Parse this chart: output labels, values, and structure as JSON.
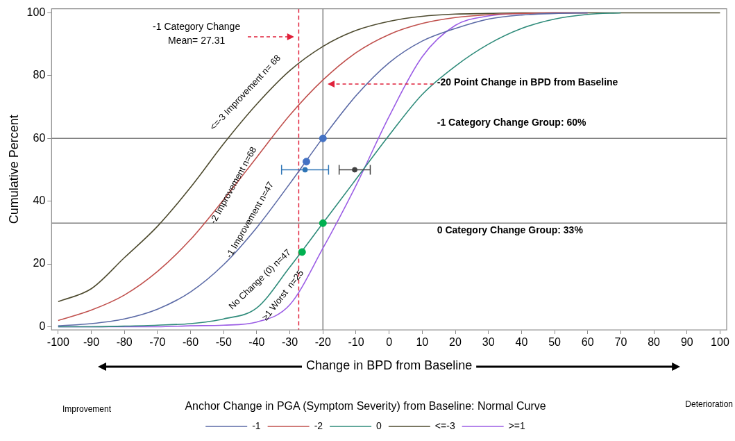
{
  "chart_data": {
    "type": "line",
    "xlabel": "Change in BPD from Baseline",
    "ylabel": "Cumulative Percent",
    "legend_title": "Anchor Change in PGA (Symptom Severity) from Baseline: Normal Curve",
    "legend": "bottom",
    "grid": false,
    "marker": "none",
    "xlim": [
      -102,
      102
    ],
    "ylim": [
      -1,
      101.3
    ],
    "xticks": [
      -100,
      -90,
      -80,
      -70,
      -60,
      -50,
      -40,
      -30,
      -20,
      -10,
      0,
      10,
      20,
      30,
      40,
      50,
      60,
      70,
      80,
      90,
      100
    ],
    "yticks": [
      0,
      20,
      40,
      60,
      80,
      100
    ],
    "x": [
      -100,
      -90,
      -80,
      -70,
      -60,
      -50,
      -40,
      -30,
      -20,
      -10,
      0,
      10,
      20,
      30,
      40,
      50,
      60,
      70,
      80,
      90,
      100
    ],
    "series": [
      {
        "name": "-1",
        "color": "#5b6aa6",
        "values": [
          0.3,
          1.0,
          2.5,
          5.6,
          11.1,
          19.8,
          31.6,
          45.6,
          60.2,
          73.6,
          84.1,
          91,
          95,
          98,
          99.3,
          99.8,
          100,
          null,
          null,
          null,
          null
        ]
      },
      {
        "name": "-2",
        "color": "#c0504d",
        "values": [
          2,
          5.3,
          10.1,
          17.6,
          27.8,
          40.5,
          54,
          67.4,
          78.6,
          87.3,
          93.1,
          96.6,
          98.5,
          99.4,
          99.8,
          100,
          100,
          null,
          null,
          null,
          null
        ]
      },
      {
        "name": "0",
        "color": "#2e8b7a",
        "values": [
          0,
          0,
          0.2,
          0.5,
          1,
          2.5,
          6,
          19,
          33,
          47,
          61,
          74,
          83,
          90,
          95,
          98,
          99.5,
          100,
          null,
          null,
          null
        ]
      },
      {
        "name": "<=-3",
        "color": "#4d4a2e",
        "values": [
          8,
          12.1,
          22,
          32,
          44.4,
          58.3,
          70.9,
          81.6,
          89.3,
          94.4,
          97.3,
          98.9,
          99.6,
          99.8,
          100,
          100,
          100,
          100,
          100,
          100,
          100
        ]
      },
      {
        "name": ">=1",
        "color": "#9b5de5",
        "values": [
          0,
          0,
          0,
          0,
          0.3,
          0.5,
          1.5,
          7,
          25,
          45,
          67,
          86,
          96,
          99,
          99.8,
          100,
          100,
          null,
          null,
          null,
          null
        ]
      },
      {
        "type": "scatter",
        "marker": "circle",
        "x": [
          -20,
          -25,
          -20,
          -26.3
        ],
        "values": [
          60,
          52.6,
          33,
          23.8
        ],
        "colors": [
          "#4472c4",
          "#4472c4",
          "#00b050",
          "#00b050"
        ]
      },
      {
        "type": "scatter",
        "marker": "circle",
        "x": [
          -25.4,
          -10.4
        ],
        "values": [
          50,
          50
        ],
        "xerrors": [
          [
            -32.5,
            -18.3
          ],
          [
            -15.1,
            -5.7
          ]
        ],
        "colors": [
          "#2e75b6",
          "#404040"
        ]
      }
    ],
    "ref_lines": [
      {
        "axis": "x",
        "value": -27.31,
        "color": "#e0203a",
        "line_style": "dashed"
      },
      {
        "axis": "x",
        "value": -20,
        "color": "#7f7f7f",
        "line_style": "solid"
      },
      {
        "axis": "y",
        "value": 60,
        "label": "-1 Category Change Group: 60%",
        "color": "#7f7f7f",
        "line_style": "solid"
      },
      {
        "axis": "y",
        "value": 33,
        "label": "0 Category Change Group: 33%",
        "color": "#7f7f7f",
        "line_style": "solid"
      }
    ],
    "annotations": [
      "<=-3 Improvement n= 68",
      "-2 Improvement n=68",
      "-1 Improvement n=47",
      "No Change (0) n=47",
      "≥1 Worst  n=25",
      "-1 Category Change\nMean= 27.31",
      "-20 Point Change in BPD from Baseline",
      "Improvement",
      "Deterioration"
    ]
  }
}
